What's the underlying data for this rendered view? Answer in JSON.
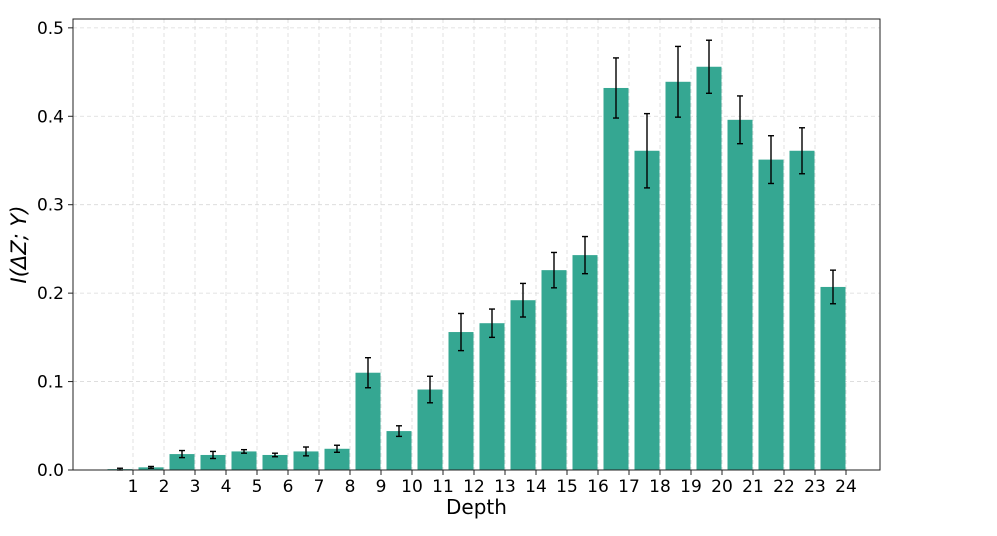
{
  "chart_data": {
    "type": "bar",
    "title": "",
    "xlabel": "Depth",
    "ylabel": "I(ΔZ; Y)",
    "categories": [
      "1",
      "2",
      "3",
      "4",
      "5",
      "6",
      "7",
      "8",
      "9",
      "10",
      "11",
      "12",
      "13",
      "14",
      "15",
      "16",
      "17",
      "18",
      "19",
      "20",
      "21",
      "22",
      "23",
      "24"
    ],
    "values": [
      0.001,
      0.003,
      0.018,
      0.017,
      0.021,
      0.017,
      0.021,
      0.024,
      0.11,
      0.044,
      0.091,
      0.156,
      0.166,
      0.192,
      0.226,
      0.243,
      0.432,
      0.361,
      0.439,
      0.456,
      0.396,
      0.351,
      0.361,
      0.207
    ],
    "errors": [
      0.001,
      0.001,
      0.004,
      0.004,
      0.002,
      0.002,
      0.005,
      0.004,
      0.017,
      0.006,
      0.015,
      0.021,
      0.016,
      0.019,
      0.02,
      0.021,
      0.034,
      0.042,
      0.04,
      0.03,
      0.027,
      0.027,
      0.026,
      0.019
    ],
    "ylim": [
      0,
      0.51
    ],
    "yticks": [
      "0.0",
      "0.1",
      "0.2",
      "0.3",
      "0.4",
      "0.5"
    ],
    "grid": true,
    "bar_color": "#35a792",
    "error_color": "#000000"
  }
}
